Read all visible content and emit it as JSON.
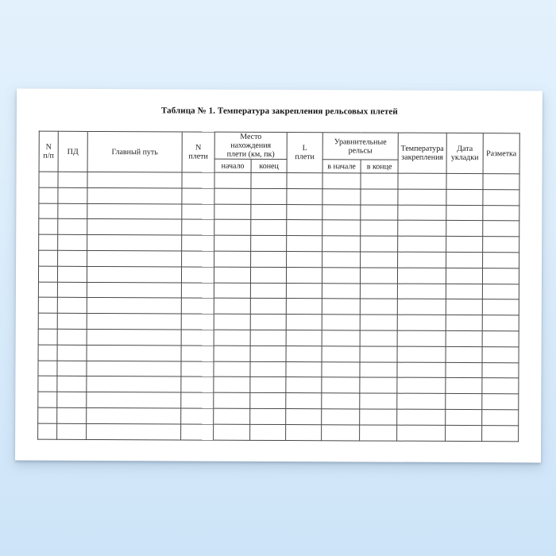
{
  "title": "Таблица № 1. Температура закрепления рельсовых плетей",
  "table": {
    "header": {
      "num": "N\nп/п",
      "pd": "ПД",
      "main_track": "Главный путь",
      "lash_number": "N\nплети",
      "location_group": "Место\nнахождения\nплети (км, пк)",
      "location_start": "начало",
      "location_end": "конец",
      "lash_length": "L\nплети",
      "equalizing_group": "Уравнительные\nрельсы",
      "equalizing_start": "в начале",
      "equalizing_end": "в конце",
      "fastening_temp": "Температура\nзакрепления",
      "laying_date": "Дата\nукладки",
      "marking": "Разметка"
    },
    "body_rows": 17,
    "body_columns": 12
  },
  "colors": {
    "backdrop_top": "#e3f1fc",
    "backdrop_bottom": "#cde4f8",
    "page_background": "#ffffff",
    "table_border": "#474747",
    "text": "#1b1b1b"
  }
}
